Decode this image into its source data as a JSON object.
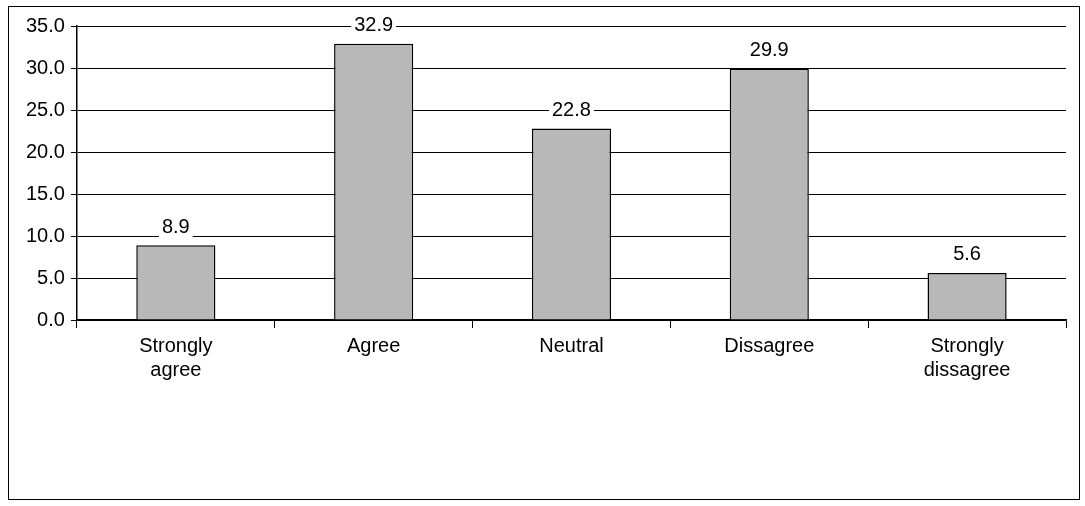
{
  "chart_data": {
    "type": "bar",
    "categories": [
      "Strongly agree",
      "Agree",
      "Neutral",
      "Dissagree",
      "Strongly dissagree"
    ],
    "values": [
      8.9,
      32.9,
      22.8,
      29.9,
      5.6
    ],
    "color": "#b8b8b8",
    "ylim": [
      0,
      35
    ],
    "yticks": [
      {
        "value": 0,
        "label": "0.0"
      },
      {
        "value": 5,
        "label": "5.0"
      },
      {
        "value": 10,
        "label": "10.0"
      },
      {
        "value": 15,
        "label": "15.0"
      },
      {
        "value": 20,
        "label": "20.0"
      },
      {
        "value": 25,
        "label": "25.0"
      },
      {
        "value": 30,
        "label": "30.0"
      },
      {
        "value": 35,
        "label": "35.0"
      }
    ],
    "grid": "y",
    "data_labels": true
  }
}
